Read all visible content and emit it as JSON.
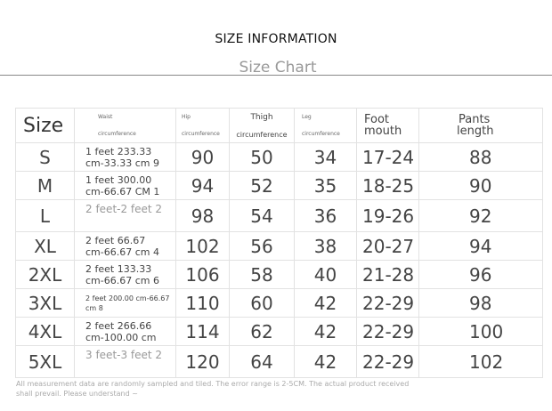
{
  "header": {
    "title": "SIZE INFORMATION",
    "subtitle": "Size Chart"
  },
  "table": {
    "columns": {
      "size": "Size",
      "waist_top": "Waist",
      "waist_bottom": "circumference",
      "hip_top": "Hip",
      "hip_bottom": "circumference",
      "thigh_top": "Thigh",
      "thigh_bottom": "circumference",
      "leg_top": "Leg",
      "leg_bottom": "circumference",
      "foot_top": "Foot",
      "foot_bottom": "mouth",
      "pants_top": "Pants",
      "pants_bottom": "length"
    },
    "rows": [
      {
        "size": "S",
        "waist1": "1 feet 233.33",
        "waist2": "cm-33.33 cm 9",
        "hip": "90",
        "thigh": "50",
        "leg": "34",
        "foot": "17-24",
        "pants": "88"
      },
      {
        "size": "M",
        "waist1": "1 feet 300.00",
        "waist2": "cm-66.67 CM 1",
        "hip": "94",
        "thigh": "52",
        "leg": "35",
        "foot": "18-25",
        "pants": "90"
      },
      {
        "size": "L",
        "waist1": "2 feet-2 feet 2",
        "waist2": "",
        "hip": "98",
        "thigh": "54",
        "leg": "36",
        "foot": "19-26",
        "pants": "92"
      },
      {
        "size": "XL",
        "waist1": "2 feet 66.67",
        "waist2": "cm-66.67 cm 4",
        "hip": "102",
        "thigh": "56",
        "leg": "38",
        "foot": "20-27",
        "pants": "94"
      },
      {
        "size": "2XL",
        "waist1": "2 feet 133.33",
        "waist2": "cm-66.67 cm 6",
        "hip": "106",
        "thigh": "58",
        "leg": "40",
        "foot": "21-28",
        "pants": "96"
      },
      {
        "size": "3XL",
        "waist1": "2 feet 200.00 cm-66.67",
        "waist2": "cm 8",
        "hip": "110",
        "thigh": "60",
        "leg": "42",
        "foot": "22-29",
        "pants": "98"
      },
      {
        "size": "4XL",
        "waist1": "2 feet 266.66",
        "waist2": "cm-100.00 cm",
        "hip": "114",
        "thigh": "62",
        "leg": "42",
        "foot": "22-29",
        "pants": "100"
      },
      {
        "size": "5XL",
        "waist1": "3 feet-3 feet 2",
        "waist2": "",
        "hip": "120",
        "thigh": "64",
        "leg": "42",
        "foot": "22-29",
        "pants": "102"
      }
    ]
  },
  "footnote": {
    "line1": "All measurement data are randomly sampled and tiled. The error range is 2-5CM. The actual product received",
    "line2": "shall prevail. Please understand ~"
  }
}
